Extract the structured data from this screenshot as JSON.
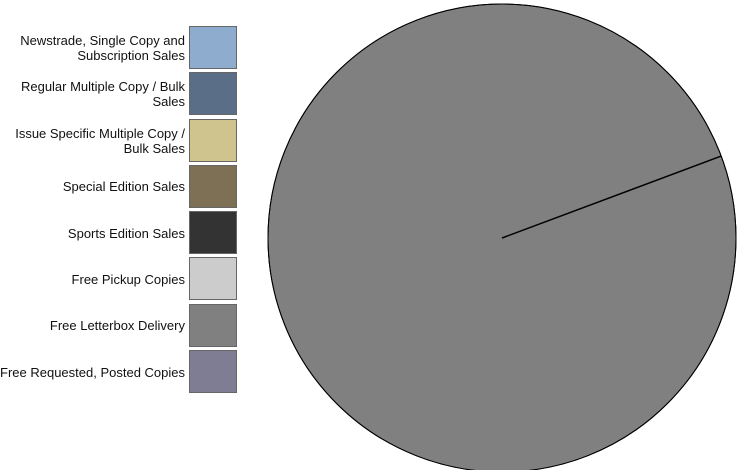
{
  "chart_data": {
    "type": "pie",
    "title": "",
    "legend_placement": "left",
    "categories": [
      "Newstrade, Single Copy and Subscription Sales",
      "Regular Multiple Copy / Bulk Sales",
      "Issue Specific Multiple Copy / Bulk Sales",
      "Special Edition Sales",
      "Sports Edition Sales",
      "Free Pickup Copies",
      "Free Letterbox Delivery",
      "Free Requested, Posted Copies"
    ],
    "values": [
      0,
      0,
      0,
      0,
      0,
      0,
      100,
      0
    ],
    "colors": [
      "#8eaccd",
      "#5a6e87",
      "#cfc38e",
      "#7d7055",
      "#333333",
      "#cccccc",
      "#808080",
      "#7e7d93"
    ]
  }
}
